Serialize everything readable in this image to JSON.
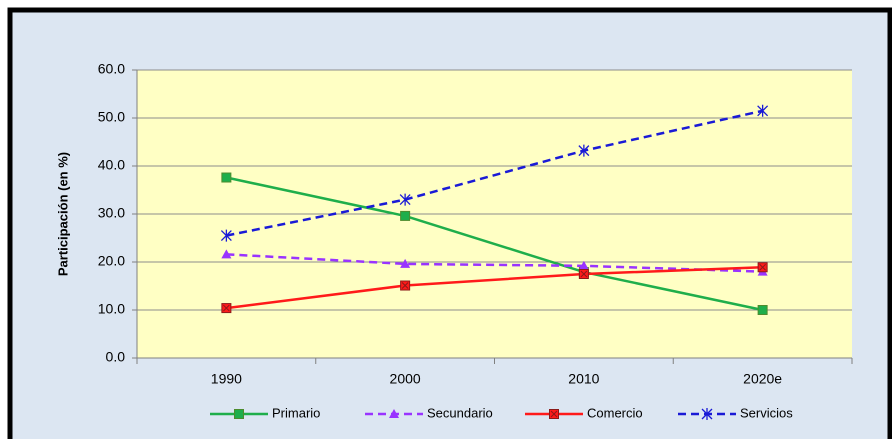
{
  "chart_data": {
    "type": "line",
    "y_label": "Participación (en %)",
    "categories": [
      "1990",
      "2000",
      "2010",
      "2020e"
    ],
    "series": [
      {
        "name": "Primario",
        "color": "#1fae4b",
        "dashed": false,
        "marker": "square",
        "values": [
          37.6,
          29.6,
          17.9,
          10.0
        ]
      },
      {
        "name": "Secundario",
        "color": "#9933ff",
        "dashed": true,
        "marker": "triangle",
        "values": [
          21.6,
          19.6,
          19.2,
          18.0
        ]
      },
      {
        "name": "Comercio",
        "color": "#ff1a1a",
        "dashed": false,
        "marker": "square-x",
        "values": [
          10.4,
          15.1,
          17.5,
          18.9
        ]
      },
      {
        "name": "Servicios",
        "color": "#1a1ad6",
        "dashed": true,
        "marker": "asterisk",
        "values": [
          25.5,
          33.0,
          43.2,
          51.5
        ]
      }
    ],
    "ylim": [
      0,
      60
    ],
    "yticks": [
      {
        "value": 0,
        "label": "0.0"
      },
      {
        "value": 10,
        "label": "10.0"
      },
      {
        "value": 20,
        "label": "20.0"
      },
      {
        "value": 30,
        "label": "30.0"
      },
      {
        "value": 40,
        "label": "40.0"
      },
      {
        "value": 50,
        "label": "50.0"
      },
      {
        "value": 60,
        "label": "60.0"
      }
    ],
    "grid": true,
    "legend": "bottom"
  }
}
